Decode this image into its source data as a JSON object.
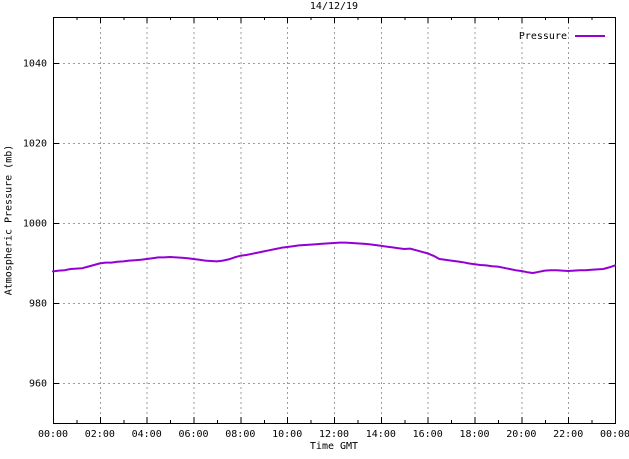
{
  "chart": {
    "title": "14/12/19",
    "xlabel": "Time GMT",
    "ylabel": "Atmospheric Pressure (mb)",
    "legend": {
      "label": "Pressure"
    }
  },
  "chart_data": {
    "type": "line",
    "title": "14/12/19",
    "xlabel": "Time GMT",
    "ylabel": "Atmospheric Pressure (mb)",
    "xlim": [
      0,
      24
    ],
    "ylim": [
      950,
      1051.5
    ],
    "grid": true,
    "grid_style": "dashed",
    "legend_position": "top-right",
    "colors": {
      "line": "#9400d3",
      "grid": "#9c9c9c",
      "border": "#000000",
      "background": "#ffffff"
    },
    "x_ticks": [
      {
        "pos": 0,
        "label": "00:00"
      },
      {
        "pos": 2,
        "label": "02:00"
      },
      {
        "pos": 4,
        "label": "04:00"
      },
      {
        "pos": 6,
        "label": "06:00"
      },
      {
        "pos": 8,
        "label": "08:00"
      },
      {
        "pos": 10,
        "label": "10:00"
      },
      {
        "pos": 12,
        "label": "12:00"
      },
      {
        "pos": 14,
        "label": "14:00"
      },
      {
        "pos": 16,
        "label": "16:00"
      },
      {
        "pos": 18,
        "label": "18:00"
      },
      {
        "pos": 20,
        "label": "20:00"
      },
      {
        "pos": 22,
        "label": "22:00"
      },
      {
        "pos": 24,
        "label": "00:00"
      }
    ],
    "x_minor_tick_step": 1,
    "y_ticks": [
      {
        "pos": 960,
        "label": "960"
      },
      {
        "pos": 980,
        "label": "980"
      },
      {
        "pos": 1000,
        "label": "1000"
      },
      {
        "pos": 1020,
        "label": "1020"
      },
      {
        "pos": 1040,
        "label": "1040"
      }
    ],
    "series": [
      {
        "name": "Pressure",
        "color": "#9400d3",
        "x": [
          0,
          0.25,
          0.5,
          0.75,
          1,
          1.25,
          1.5,
          1.75,
          2,
          2.25,
          2.5,
          2.75,
          3,
          3.25,
          3.5,
          3.75,
          4,
          4.25,
          4.5,
          4.75,
          5,
          5.25,
          5.5,
          5.75,
          6,
          6.25,
          6.5,
          6.75,
          7,
          7.25,
          7.5,
          7.75,
          8,
          8.25,
          8.5,
          8.75,
          9,
          9.25,
          9.5,
          9.75,
          10,
          10.25,
          10.5,
          10.75,
          11,
          11.25,
          11.5,
          11.75,
          12,
          12.25,
          12.5,
          12.75,
          13,
          13.25,
          13.5,
          13.75,
          14,
          14.25,
          14.5,
          14.75,
          15,
          15.25,
          15.5,
          15.75,
          16,
          16.25,
          16.5,
          16.75,
          17,
          17.25,
          17.5,
          17.75,
          18,
          18.25,
          18.5,
          18.75,
          19,
          19.25,
          19.5,
          19.75,
          20,
          20.25,
          20.5,
          20.75,
          21,
          21.25,
          21.5,
          21.75,
          22,
          22.25,
          22.5,
          22.75,
          23,
          23.25,
          23.5,
          23.75,
          24
        ],
        "values": [
          987.9,
          988.1,
          988.2,
          988.5,
          988.6,
          988.7,
          989.1,
          989.5,
          989.9,
          990.1,
          990.1,
          990.3,
          990.4,
          990.6,
          990.7,
          990.8,
          991.0,
          991.2,
          991.4,
          991.4,
          991.5,
          991.4,
          991.3,
          991.2,
          991.0,
          990.8,
          990.6,
          990.5,
          990.4,
          990.6,
          990.9,
          991.4,
          991.8,
          992.0,
          992.3,
          992.6,
          992.9,
          993.2,
          993.5,
          993.8,
          994.0,
          994.2,
          994.4,
          994.5,
          994.6,
          994.7,
          994.8,
          994.9,
          995.0,
          995.1,
          995.1,
          995.0,
          994.9,
          994.8,
          994.7,
          994.5,
          994.3,
          994.1,
          993.9,
          993.7,
          993.5,
          993.6,
          993.2,
          992.8,
          992.4,
          991.8,
          991.0,
          990.8,
          990.6,
          990.4,
          990.2,
          989.9,
          989.7,
          989.5,
          989.4,
          989.2,
          989.1,
          988.8,
          988.5,
          988.2,
          988.0,
          987.7,
          987.5,
          987.8,
          988.1,
          988.2,
          988.2,
          988.1,
          988.0,
          988.1,
          988.2,
          988.2,
          988.3,
          988.4,
          988.5,
          988.9,
          989.4
        ]
      }
    ]
  }
}
